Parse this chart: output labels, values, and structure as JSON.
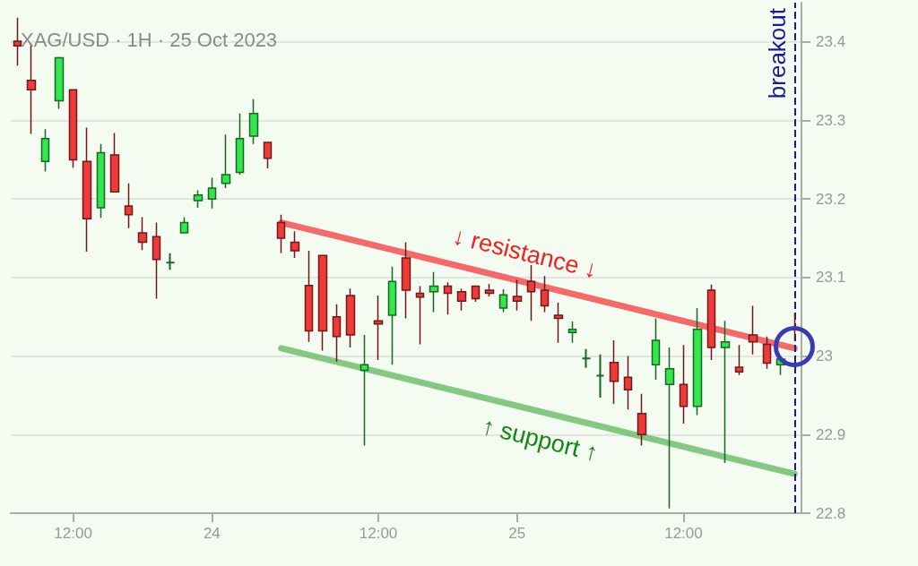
{
  "chart_data": {
    "type": "candlestick",
    "title": "XAG/USD · 1H · 25 Oct 2023",
    "categories": [
      null,
      null,
      null,
      null,
      "12:00",
      null,
      null,
      null,
      null,
      null,
      null,
      null,
      null,
      null,
      "24",
      null,
      null,
      null,
      null,
      null,
      null,
      null,
      null,
      null,
      null,
      null,
      "12:00",
      null,
      null,
      null,
      null,
      null,
      null,
      null,
      null,
      null,
      "25",
      null,
      null,
      null,
      null,
      null,
      null,
      null,
      null,
      null,
      null,
      null,
      "12:00",
      null,
      null,
      null,
      null,
      null,
      null,
      null,
      null
    ],
    "ohlc": [
      [
        23.401,
        23.431,
        23.37,
        23.395
      ],
      [
        23.351,
        23.398,
        23.283,
        23.339
      ],
      [
        23.248,
        23.289,
        23.235,
        23.277
      ],
      [
        23.325,
        23.381,
        23.315,
        23.38
      ],
      [
        23.339,
        23.339,
        23.24,
        23.25
      ],
      [
        23.248,
        23.291,
        23.133,
        23.175
      ],
      [
        23.189,
        23.27,
        23.176,
        23.259
      ],
      [
        23.256,
        23.284,
        23.209,
        23.209
      ],
      [
        23.191,
        23.22,
        23.163,
        23.18
      ],
      [
        23.157,
        23.177,
        23.135,
        23.145
      ],
      [
        23.152,
        23.17,
        23.073,
        23.123
      ],
      [
        23.119,
        23.131,
        23.11,
        23.119
      ],
      [
        23.157,
        23.177,
        23.157,
        23.17
      ],
      [
        23.198,
        23.211,
        23.189,
        23.205
      ],
      [
        23.2,
        23.227,
        23.188,
        23.214
      ],
      [
        23.22,
        23.282,
        23.214,
        23.231
      ],
      [
        23.234,
        23.309,
        23.231,
        23.277
      ],
      [
        23.28,
        23.327,
        23.27,
        23.309
      ],
      [
        23.272,
        23.272,
        23.239,
        23.252
      ],
      [
        23.17,
        23.18,
        23.131,
        23.15
      ],
      [
        23.145,
        23.159,
        23.125,
        23.134
      ],
      [
        23.09,
        23.134,
        23.018,
        23.032
      ],
      [
        23.128,
        23.128,
        23.007,
        23.032
      ],
      [
        23.05,
        23.066,
        22.993,
        23.025
      ],
      [
        23.077,
        23.086,
        23.011,
        23.027
      ],
      [
        22.982,
        23.027,
        22.886,
        22.989
      ],
      [
        23.045,
        23.077,
        22.995,
        23.041
      ],
      [
        23.052,
        23.114,
        22.989,
        23.095
      ],
      [
        23.125,
        23.145,
        23.048,
        23.084
      ],
      [
        23.08,
        23.089,
        23.015,
        23.075
      ],
      [
        23.082,
        23.107,
        23.056,
        23.089
      ],
      [
        23.089,
        23.094,
        23.053,
        23.08
      ],
      [
        23.082,
        23.086,
        23.058,
        23.07
      ],
      [
        23.089,
        23.089,
        23.069,
        23.073
      ],
      [
        23.084,
        23.092,
        23.076,
        23.08
      ],
      [
        23.061,
        23.085,
        23.056,
        23.078
      ],
      [
        23.076,
        23.097,
        23.058,
        23.07
      ],
      [
        23.095,
        23.116,
        23.045,
        23.082
      ],
      [
        23.084,
        23.102,
        23.056,
        23.064
      ],
      [
        23.052,
        23.068,
        23.017,
        23.048
      ],
      [
        23.03,
        23.044,
        23.017,
        23.034
      ],
      [
        22.997,
        23.009,
        22.985,
        22.997
      ],
      [
        22.975,
        23.002,
        22.947,
        22.975
      ],
      [
        22.992,
        23.02,
        22.939,
        22.968
      ],
      [
        22.973,
        23.0,
        22.932,
        22.957
      ],
      [
        22.927,
        22.952,
        22.886,
        22.9
      ],
      [
        22.989,
        23.048,
        22.97,
        23.02
      ],
      [
        22.964,
        23.011,
        22.806,
        22.984
      ],
      [
        22.964,
        23.014,
        22.914,
        22.936
      ],
      [
        22.936,
        23.061,
        22.925,
        23.034
      ],
      [
        23.084,
        23.091,
        22.995,
        23.011
      ],
      [
        23.011,
        23.045,
        22.864,
        23.018
      ],
      [
        22.986,
        23.014,
        22.976,
        22.98
      ],
      [
        23.027,
        23.064,
        23.002,
        23.018
      ],
      [
        23.015,
        23.025,
        22.984,
        22.991
      ],
      [
        22.989,
        22.996,
        22.976,
        22.996
      ],
      [
        23.036,
        23.055,
        23.02,
        23.034
      ]
    ],
    "colors": [
      "#f03a3a",
      "#f03a3a",
      "#33e64d",
      "#33e64d",
      "#f03a3a",
      "#f03a3a",
      "#33e64d",
      "#f03a3a",
      "#f03a3a",
      "#f03a3a",
      "#f03a3a",
      "#176823",
      "#33e64d",
      "#33e64d",
      "#33e64d",
      "#33e64d",
      "#33e64d",
      "#33e64d",
      "#f03a3a",
      "#f03a3a",
      "#f03a3a",
      "#f03a3a",
      "#f03a3a",
      "#f03a3a",
      "#f03a3a",
      "#33e64d",
      "#f03a3a",
      "#33e64d",
      "#f03a3a",
      "#f03a3a",
      "#33e64d",
      "#f03a3a",
      "#f03a3a",
      "#f03a3a",
      "#f03a3a",
      "#33e64d",
      "#f03a3a",
      "#f03a3a",
      "#f03a3a",
      "#f03a3a",
      "#33e64d",
      "#176823",
      "#176823",
      "#f03a3a",
      "#f03a3a",
      "#f03a3a",
      "#33e64d",
      "#33e64d",
      "#f03a3a",
      "#33e64d",
      "#f03a3a",
      "#33e64d",
      "#f03a3a",
      "#f03a3a",
      "#f03a3a",
      "#33e64d",
      "#f03a3a"
    ],
    "series": [
      {
        "type": "line",
        "values": [
          null,
          null,
          null,
          null,
          null,
          null,
          null,
          null,
          null,
          null,
          null,
          null,
          null,
          null,
          null,
          null,
          null,
          null,
          null,
          23.17,
          null,
          null,
          null,
          null,
          null,
          null,
          null,
          null,
          null,
          null,
          null,
          null,
          null,
          null,
          null,
          null,
          null,
          null,
          null,
          null,
          null,
          null,
          null,
          null,
          null,
          null,
          null,
          null,
          null,
          null,
          null,
          null,
          null,
          null,
          null,
          null,
          23.01
        ],
        "color": "#f55050"
      },
      {
        "type": "line",
        "values": [
          null,
          null,
          null,
          null,
          null,
          null,
          null,
          null,
          null,
          null,
          null,
          null,
          null,
          null,
          null,
          null,
          null,
          null,
          null,
          23.01,
          null,
          null,
          null,
          null,
          null,
          null,
          null,
          null,
          null,
          null,
          null,
          null,
          null,
          null,
          null,
          null,
          null,
          null,
          null,
          null,
          null,
          null,
          null,
          null,
          null,
          null,
          null,
          null,
          null,
          null,
          null,
          null,
          null,
          null,
          null,
          null,
          22.85
        ],
        "color": "#6fbf6f"
      }
    ],
    "ylim": [
      22.8,
      23.45
    ],
    "yticks": [
      22.8,
      22.9,
      23.0,
      23.1,
      23.2,
      23.3,
      23.4
    ],
    "grid": "y",
    "annotations": [
      "↓ resistance ↓",
      "↑ support ↑",
      "breakout"
    ]
  }
}
